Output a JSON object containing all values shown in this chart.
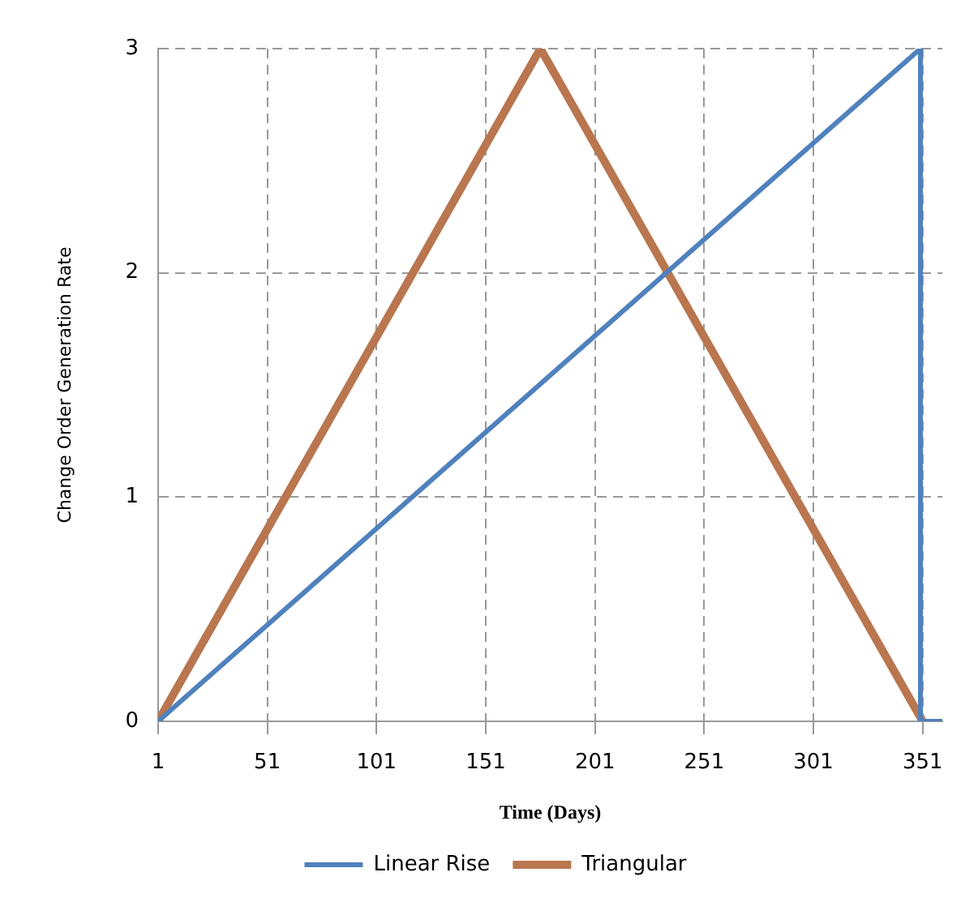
{
  "chart_data": {
    "type": "line",
    "xlabel": "Time (Days)",
    "ylabel": "Change Order Generation Rate",
    "xlim": [
      1,
      360
    ],
    "xticks": [
      1,
      51,
      101,
      151,
      201,
      251,
      301,
      351
    ],
    "ylim": [
      0,
      3
    ],
    "yticks": [
      0,
      1,
      2,
      3
    ],
    "grid": true,
    "legend": "bottom",
    "marker": "none",
    "line_style": "solid",
    "series": [
      {
        "name": "Linear Rise",
        "color": "#4f81bd",
        "x": [
          1,
          350,
          350,
          360
        ],
        "values": [
          0,
          3,
          0,
          0
        ]
      },
      {
        "name": "Triangular",
        "color": "#b9764f",
        "x": [
          1,
          176,
          351
        ],
        "values": [
          0,
          3,
          0
        ]
      }
    ]
  }
}
